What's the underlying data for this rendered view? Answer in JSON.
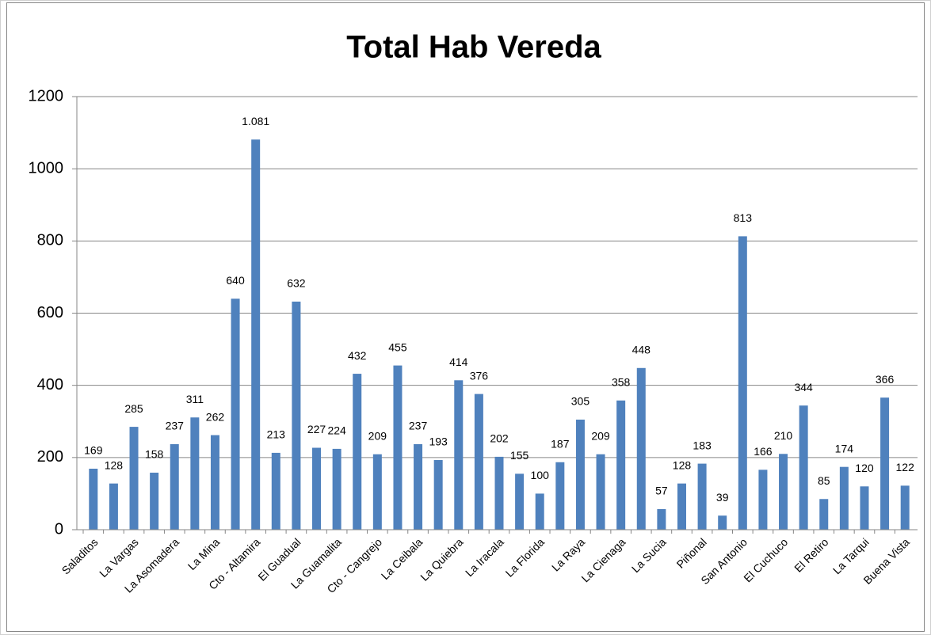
{
  "chart_data": {
    "type": "bar",
    "title": "Total Hab Vereda",
    "categories": [
      "Saladitos",
      null,
      "La Vargas",
      null,
      "La Asomadera",
      null,
      "La Mina",
      null,
      "Cto - Altamira",
      null,
      "El Guadual",
      null,
      "La Guamalita",
      null,
      "Cto - Cangrejo",
      null,
      "La Ceibala",
      null,
      "La Quiebra",
      null,
      "La Iracala",
      null,
      "La Florida",
      null,
      "La Raya",
      null,
      "La Cienaga",
      null,
      "La Sucia",
      null,
      "Piñonal",
      null,
      "San Antonio",
      null,
      "El Cuchuco",
      null,
      "El Retiro",
      null,
      "La Tarqui",
      null,
      "Buena Vista"
    ],
    "values": [
      169,
      128,
      285,
      158,
      237,
      311,
      262,
      640,
      1081,
      213,
      632,
      227,
      224,
      432,
      209,
      455,
      237,
      193,
      414,
      376,
      202,
      155,
      100,
      187,
      305,
      209,
      358,
      448,
      57,
      128,
      183,
      39,
      813,
      166,
      210,
      344,
      85,
      174,
      120,
      366,
      122
    ],
    "value_labels": [
      "169",
      "128",
      "285",
      "158",
      "237",
      "311",
      "262",
      "640",
      "1.081",
      "213",
      "632",
      "227",
      "224",
      "432",
      "209",
      "455",
      "237",
      "193",
      "414",
      "376",
      "202",
      "155",
      "100",
      "187",
      "305",
      "209",
      "358",
      "448",
      "57",
      "128",
      "183",
      "39",
      "813",
      "166",
      "210",
      "344",
      "85",
      "174",
      "120",
      "366",
      "122"
    ],
    "color": "#4f81bd",
    "ylim": [
      0,
      1200
    ],
    "yticks": [
      0,
      200,
      400,
      600,
      800,
      1000,
      1200
    ],
    "grid": true
  }
}
